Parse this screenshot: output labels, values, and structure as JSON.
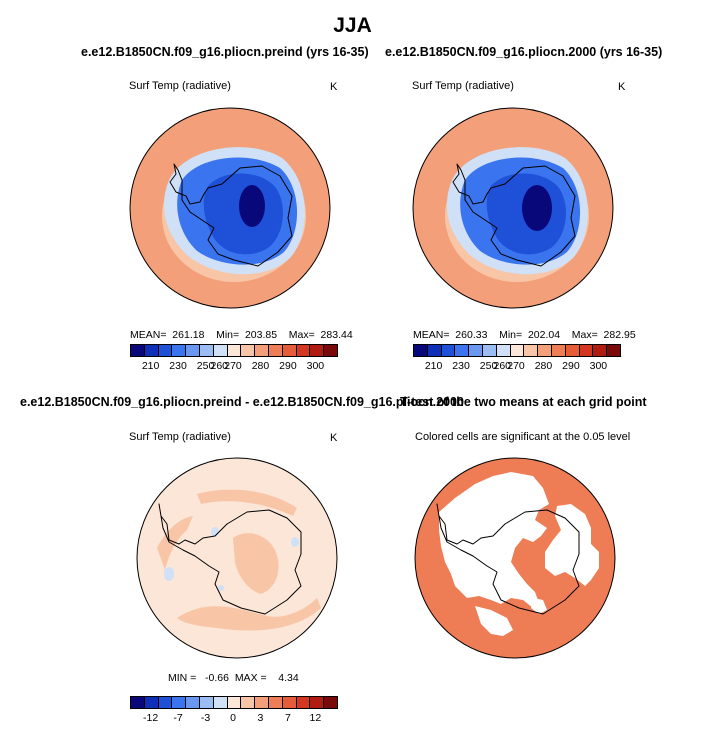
{
  "figure_title": "JJA",
  "panels": [
    {
      "title": "e.e12.B1850CN.f09_g16.pliocn.preind (yrs 16-35)",
      "variable": "Surf Temp (radiative)",
      "units": "K",
      "stats": "MEAN=  261.18    Min=  203.85    Max=  283.44",
      "colorbar_ticks": [
        "210",
        "230",
        "250",
        "260",
        "270",
        "280",
        "290",
        "300"
      ]
    },
    {
      "title": "e.e12.B1850CN.f09_g16.pliocn.2000 (yrs 16-35)",
      "variable": "Surf Temp (radiative)",
      "units": "K",
      "stats": "MEAN=  260.33    Min=  202.04    Max=  282.95",
      "colorbar_ticks": [
        "210",
        "230",
        "250",
        "260",
        "270",
        "280",
        "290",
        "300"
      ]
    },
    {
      "title": "e.e12.B1850CN.f09_g16.pliocn.preind - e.e12.B1850CN.f09_g16.pliocn.2000",
      "variable": "Surf Temp (radiative)",
      "units": "K",
      "stats": "MIN =   -0.66  MAX =    4.34",
      "colorbar_ticks": [
        "-12",
        "-7",
        "-3",
        "0",
        "3",
        "7",
        "12"
      ]
    },
    {
      "title": "T-test of the two means at each grid point",
      "subtitle": "Colored cells are significant at the 0.05 level"
    }
  ],
  "colorbars": {
    "absolute": [
      "#08087a",
      "#0f2fb8",
      "#1f50d8",
      "#3a74ee",
      "#6a98f0",
      "#9cbdf3",
      "#cfe0f7",
      "#fbe6d8",
      "#f8c6a6",
      "#f3a07a",
      "#ee7d55",
      "#e65c36",
      "#d5361f",
      "#b01b12",
      "#7a0a0a"
    ],
    "difference": [
      "#08087a",
      "#0f2fb8",
      "#1f50d8",
      "#3a74ee",
      "#6a98f0",
      "#9cbdf3",
      "#cfe0f7",
      "#fbe6d8",
      "#f8c6a6",
      "#f3a07a",
      "#ee7d55",
      "#e65c36",
      "#d5361f",
      "#b01b12",
      "#7a0a0a"
    ]
  },
  "map_colors": {
    "ocean_warm": "#f3a07a",
    "ocean_pale": "#f8c6a6",
    "ice_edge": "#cfe0f7",
    "ice_mid": "#3a74ee",
    "ice_deep": "#1f50d8",
    "ice_core": "#08087a",
    "diff_background": "#fbe6d8",
    "diff_positive": "#f8c6a6",
    "diff_negative": "#cfe0f7",
    "ttest_significant": "#ee7d55",
    "ttest_not_significant": "#ffffff"
  }
}
